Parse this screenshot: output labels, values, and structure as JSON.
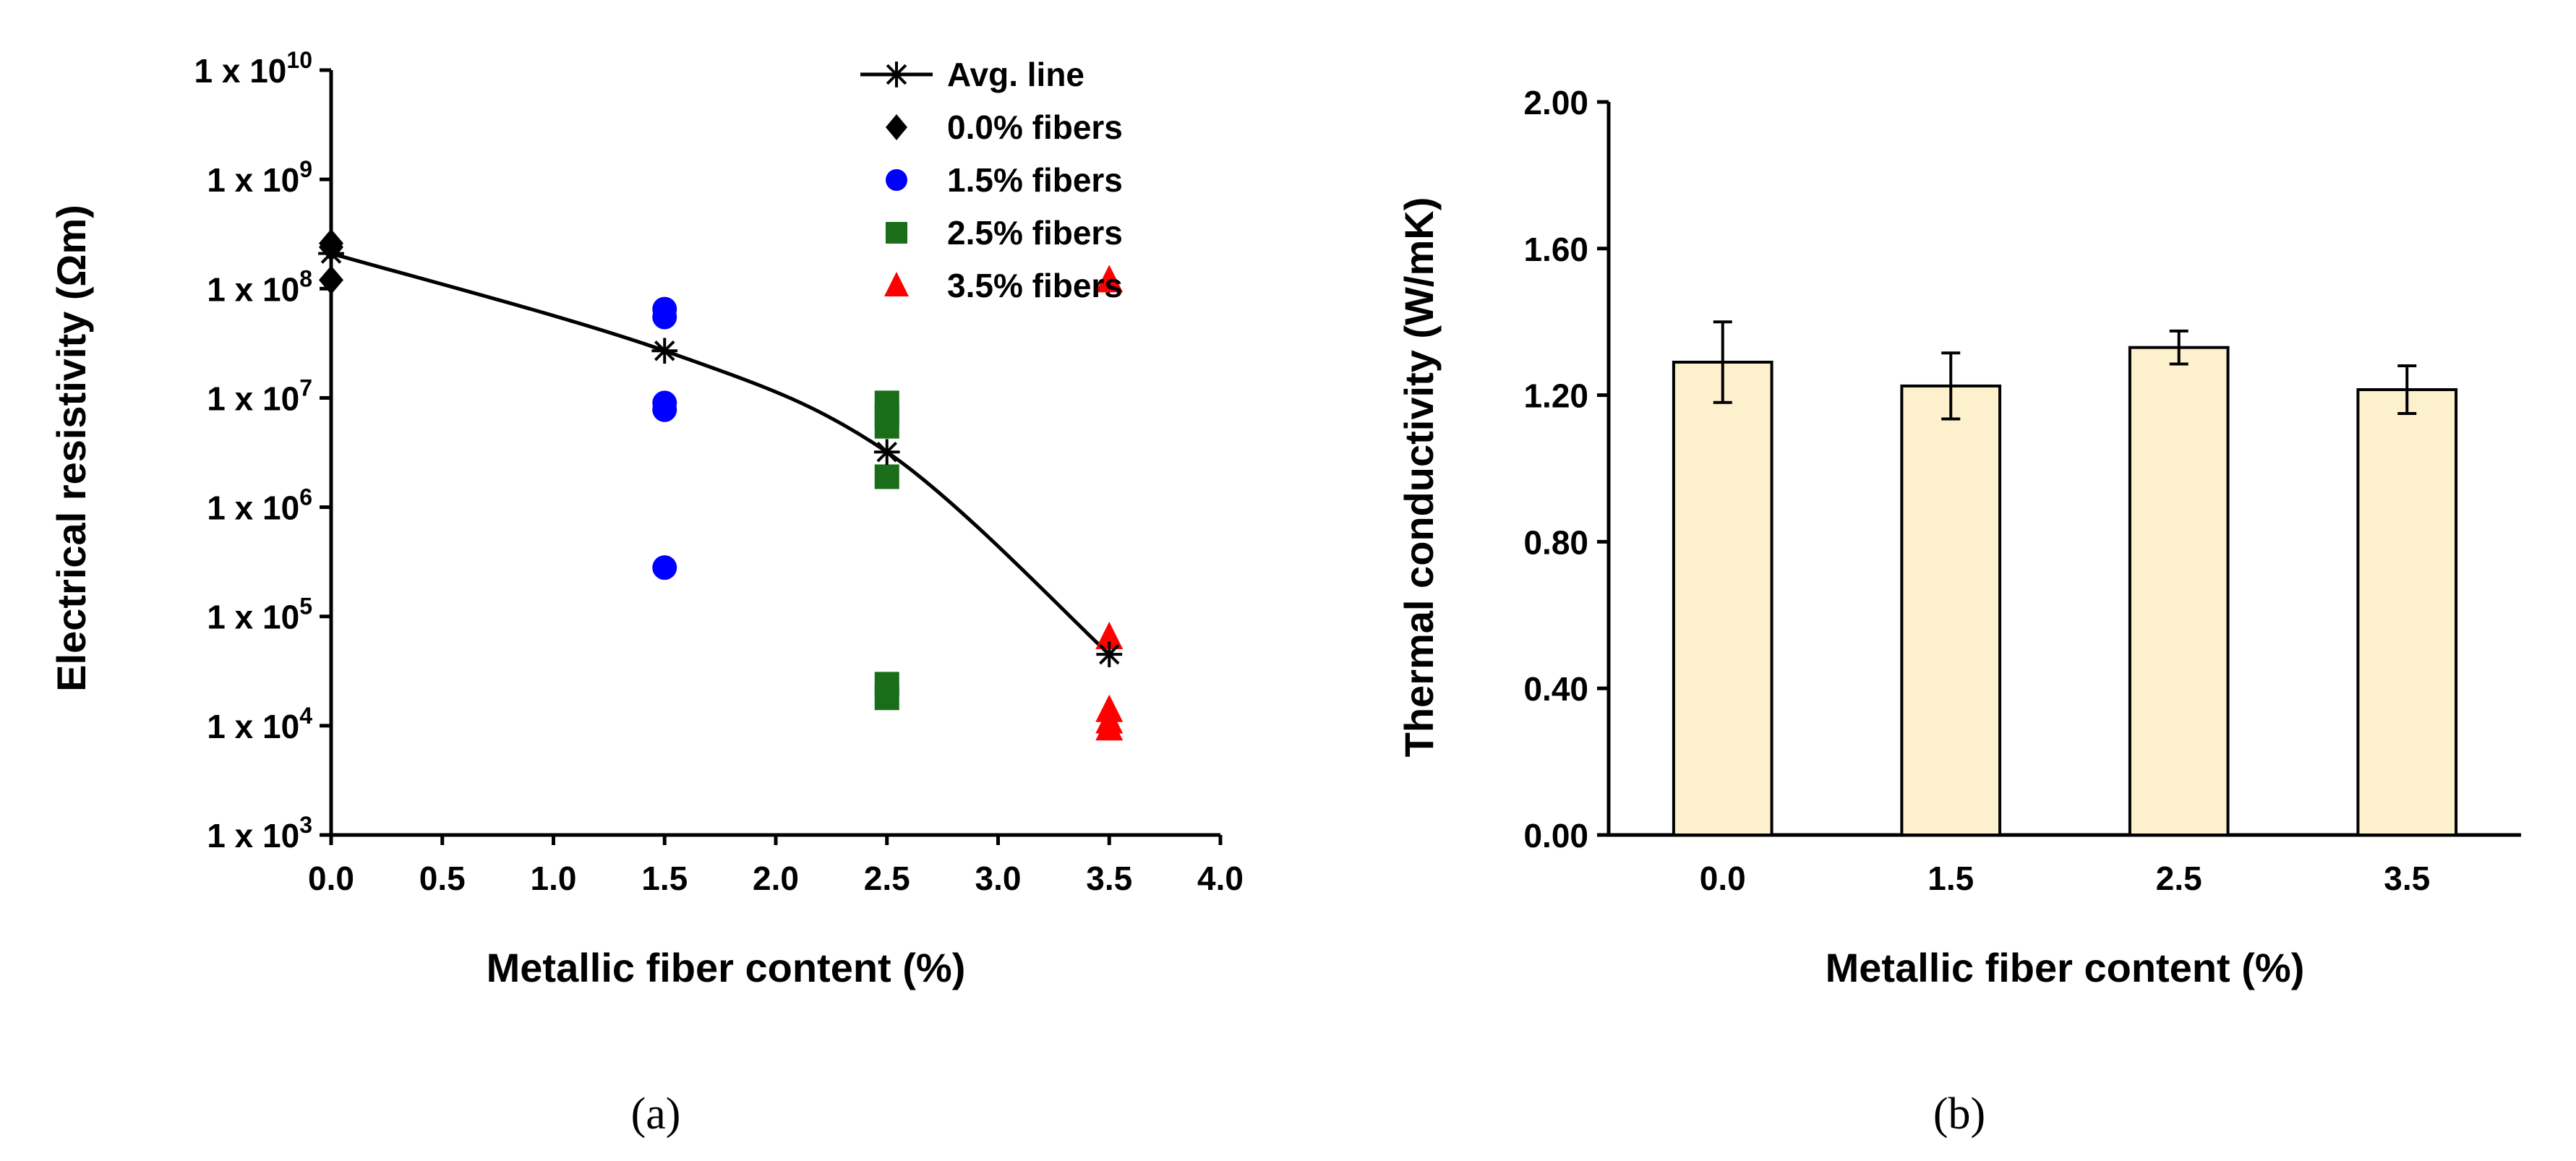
{
  "chart_data": [
    {
      "panel": "(a)",
      "type": "scatter",
      "ylabel": "Electrical resistivity  (Ωm)",
      "xlabel": "Metallic fiber content (%)",
      "xlim": [
        0.0,
        4.0
      ],
      "xticks": [
        "0.0",
        "0.5",
        "1.0",
        "1.5",
        "2.0",
        "2.5",
        "3.0",
        "3.5",
        "4.0"
      ],
      "yscale": "log",
      "ylim_exp": [
        3,
        10
      ],
      "yticks": [
        {
          "base": "1 x 10",
          "exp": "3"
        },
        {
          "base": "1 x 10",
          "exp": "4"
        },
        {
          "base": "1 x 10",
          "exp": "5"
        },
        {
          "base": "1 x 10",
          "exp": "6"
        },
        {
          "base": "1 x 10",
          "exp": "7"
        },
        {
          "base": "1 x 10",
          "exp": "8"
        },
        {
          "base": "1 x 10",
          "exp": "9"
        },
        {
          "base": "1 x 10",
          "exp": "10"
        }
      ],
      "series": [
        {
          "name": "0.0% fibers",
          "marker": "diamond",
          "color": "#000000",
          "x": [
            0.0,
            0.0,
            0.0
          ],
          "y": [
            260000000,
            240000000,
            120000000
          ]
        },
        {
          "name": "1.5% fibers",
          "marker": "circle",
          "color": "#0000ff",
          "x": [
            1.5,
            1.5,
            1.5,
            1.5,
            1.5
          ],
          "y": [
            65000000,
            55000000,
            9000000,
            7800000,
            280000
          ]
        },
        {
          "name": "2.5% fibers",
          "marker": "square",
          "color": "#1a6e1a",
          "x": [
            2.5,
            2.5,
            2.5,
            2.5,
            2.5,
            2.5
          ],
          "y": [
            9000000,
            7000000,
            5500000,
            1900000,
            24000,
            18000
          ]
        },
        {
          "name": "3.5% fibers",
          "marker": "triangle",
          "color": "#ff0000",
          "x": [
            3.5,
            3.5,
            3.5,
            3.5,
            3.5
          ],
          "y": [
            120000000,
            65000,
            14000,
            11000,
            9500
          ]
        }
      ],
      "avg_line": {
        "name": "Avg. line",
        "color": "#000000",
        "x": [
          0.0,
          1.5,
          2.5,
          3.5
        ],
        "y": [
          210000000,
          27000000,
          3200000,
          45000
        ]
      }
    },
    {
      "panel": "(b)",
      "type": "bar",
      "ylabel": "Thermal conductivity (W/mK)",
      "xlabel": "Metallic fiber content (%)",
      "categories": [
        "0.0",
        "1.5",
        "2.5",
        "3.5"
      ],
      "values": [
        1.29,
        1.225,
        1.33,
        1.215
      ],
      "errors": [
        0.11,
        0.09,
        0.045,
        0.065
      ],
      "ylim": [
        0.0,
        2.0
      ],
      "yticks": [
        "0.00",
        "0.40",
        "0.80",
        "1.20",
        "1.60",
        "2.00"
      ],
      "bar_color": "#fdf0cc"
    }
  ]
}
